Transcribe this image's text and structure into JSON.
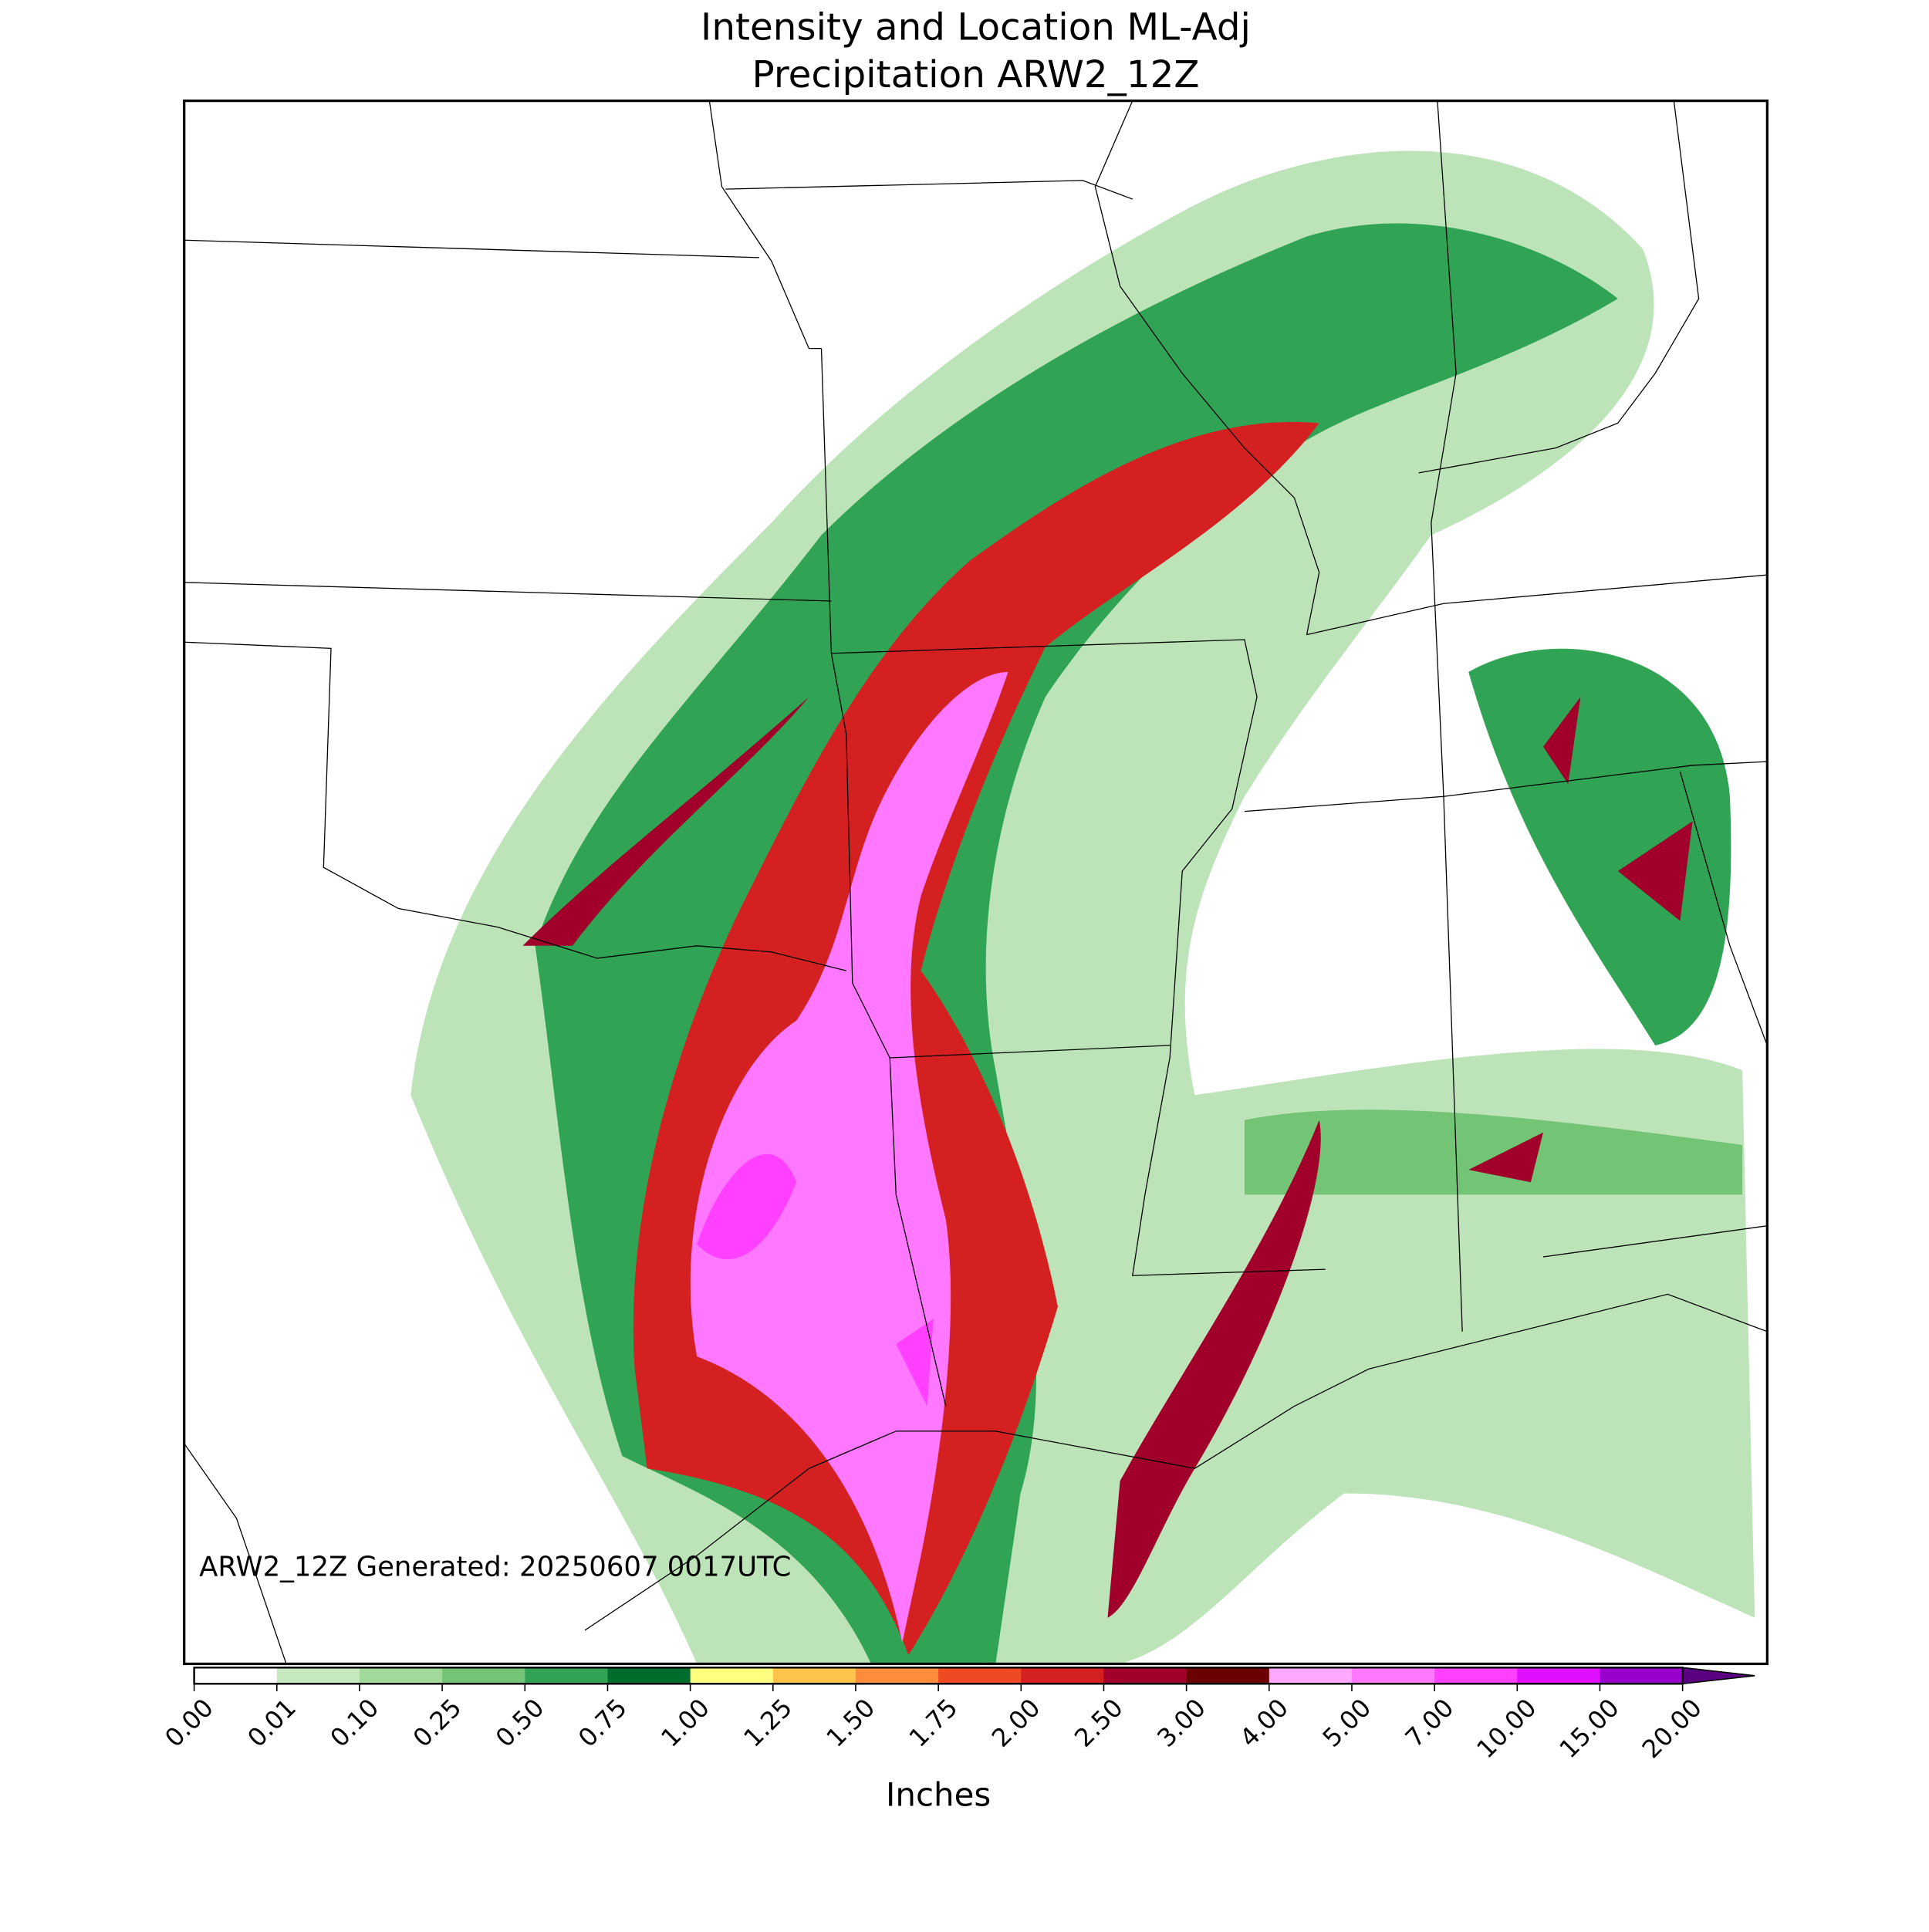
{
  "title": [
    "Intensity and Location ML-Adj",
    "Precipitation ARW2_12Z"
  ],
  "annotation": "ARW2_12Z Generated: 20250607 0017UTC",
  "colorbar": {
    "label": "Inches",
    "ticks": [
      {
        "value": 0,
        "label": "0.00"
      },
      {
        "value": 0.01,
        "label": "0.01"
      },
      {
        "value": 0.1,
        "label": "0.10"
      },
      {
        "value": 0.25,
        "label": "0.25"
      },
      {
        "value": 0.5,
        "label": "0.50"
      },
      {
        "value": 0.75,
        "label": "0.75"
      },
      {
        "value": 1,
        "label": "1.00"
      },
      {
        "value": 1.25,
        "label": "1.25"
      },
      {
        "value": 1.5,
        "label": "1.50"
      },
      {
        "value": 1.75,
        "label": "1.75"
      },
      {
        "value": 2,
        "label": "2.00"
      },
      {
        "value": 2.5,
        "label": "2.50"
      },
      {
        "value": 3,
        "label": "3.00"
      },
      {
        "value": 4,
        "label": "4.00"
      },
      {
        "value": 5,
        "label": "5.00"
      },
      {
        "value": 7,
        "label": "7.00"
      },
      {
        "value": 10,
        "label": "10.00"
      },
      {
        "value": 15,
        "label": "15.00"
      },
      {
        "value": 20,
        "label": "20.00"
      }
    ],
    "colors": [
      "#ffffff",
      "#c7e9c0",
      "#a1d99b",
      "#74c476",
      "#31a354",
      "#006d2c",
      "#ffff80",
      "#fdc34a",
      "#fd8d3c",
      "#f04a24",
      "#d42020",
      "#a0002a",
      "#6b0000",
      "#ffa8ff",
      "#ff78ff",
      "#ff40ff",
      "#e010ff",
      "#9900cc"
    ],
    "extend_color": "#5a0080"
  }
}
